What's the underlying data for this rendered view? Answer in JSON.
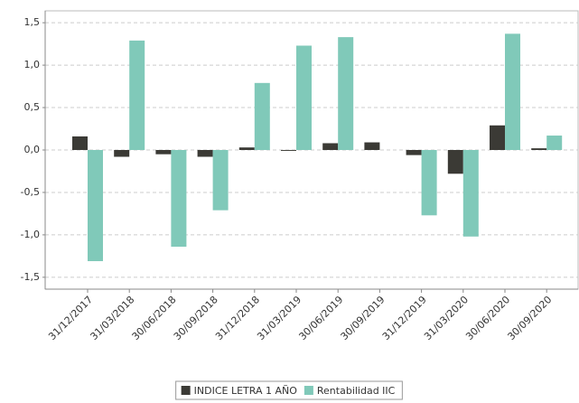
{
  "chart_data": {
    "type": "bar",
    "categories": [
      "31/12/2017",
      "31/03/2018",
      "30/06/2018",
      "30/09/2018",
      "31/12/2018",
      "31/03/2019",
      "30/06/2019",
      "30/09/2019",
      "31/12/2019",
      "31/03/2020",
      "30/06/2020",
      "30/09/2020"
    ],
    "series": [
      {
        "name": "INDICE LETRA 1 AÑO",
        "color": "#3b3a35",
        "values": [
          0.16,
          -0.08,
          -0.05,
          -0.08,
          0.03,
          -0.01,
          0.08,
          0.09,
          -0.06,
          -0.28,
          0.29,
          0.02
        ]
      },
      {
        "name": "Rentabilidad IIC",
        "color": "#80c9b9",
        "values": [
          -1.31,
          1.29,
          -1.14,
          -0.71,
          0.79,
          1.23,
          1.33,
          null,
          -0.77,
          -1.02,
          1.37,
          0.17
        ]
      }
    ],
    "ylim": [
      -1.64,
      1.64
    ],
    "yticks": [
      {
        "value": 1.5,
        "label": "1,5"
      },
      {
        "value": 1.0,
        "label": "1,0"
      },
      {
        "value": 0.5,
        "label": "0,5"
      },
      {
        "value": 0,
        "label": "0,0"
      },
      {
        "value": -0.5,
        "label": "-0,5"
      },
      {
        "value": -1.0,
        "label": "-1,0"
      },
      {
        "value": -1.5,
        "label": "-1,5"
      }
    ],
    "grid": true,
    "legend": "bottom"
  }
}
